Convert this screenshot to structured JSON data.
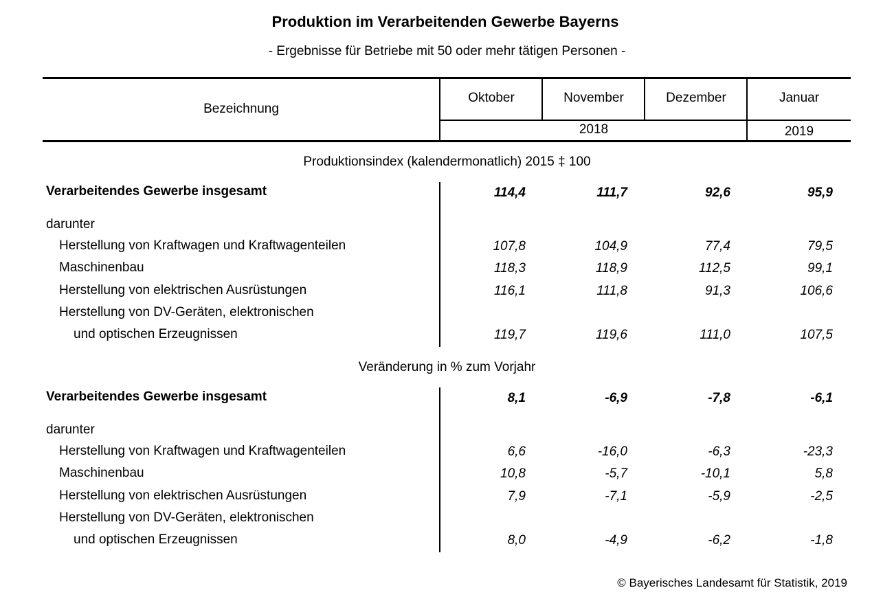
{
  "title": "Produktion im Verarbeitenden Gewerbe Bayerns",
  "subtitle": "- Ergebnisse für Betriebe mit 50 oder mehr tätigen Personen -",
  "header": {
    "label_col": "Bezeichnung",
    "months": [
      "Oktober",
      "November",
      "Dezember",
      "Januar"
    ],
    "year_2018": "2018",
    "year_2019": "2019"
  },
  "sections": [
    {
      "title": "Produktionsindex (kalendermonatlich) 2015 ‡ 100",
      "total": {
        "label": "Verarbeitendes Gewerbe insgesamt",
        "values": [
          "114,4",
          "111,7",
          "92,6",
          "95,9"
        ]
      },
      "darunter": "darunter",
      "rows": [
        {
          "label": "Herstellung von Kraftwagen und Kraftwagenteilen",
          "values": [
            "107,8",
            "104,9",
            "77,4",
            "79,5"
          ]
        },
        {
          "label": "Maschinenbau",
          "values": [
            "118,3",
            "118,9",
            "112,5",
            "99,1"
          ]
        },
        {
          "label": "Herstellung von elektrischen Ausrüstungen",
          "values": [
            "116,1",
            "111,8",
            "91,3",
            "106,6"
          ]
        },
        {
          "label": "Herstellung von DV-Geräten, elektronischen",
          "label2": "und optischen Erzeugnissen",
          "values": [
            "119,7",
            "119,6",
            "111,0",
            "107,5"
          ]
        }
      ]
    },
    {
      "title": "Veränderung in % zum Vorjahr",
      "total": {
        "label": "Verarbeitendes Gewerbe insgesamt",
        "values": [
          "8,1",
          "-6,9",
          "-7,8",
          "-6,1"
        ]
      },
      "darunter": "darunter",
      "rows": [
        {
          "label": "Herstellung von Kraftwagen und Kraftwagenteilen",
          "values": [
            "6,6",
            "-16,0",
            "-6,3",
            "-23,3"
          ]
        },
        {
          "label": "Maschinenbau",
          "values": [
            "10,8",
            "-5,7",
            "-10,1",
            "5,8"
          ]
        },
        {
          "label": "Herstellung von elektrischen Ausrüstungen",
          "values": [
            "7,9",
            "-7,1",
            "-5,9",
            "-2,5"
          ]
        },
        {
          "label": "Herstellung von DV-Geräten, elektronischen",
          "label2": "und optischen Erzeugnissen",
          "values": [
            "8,0",
            "-4,9",
            "-6,2",
            "-1,8"
          ]
        }
      ]
    }
  ],
  "footer": "© Bayerisches Landesamt für Statistik, 2019"
}
